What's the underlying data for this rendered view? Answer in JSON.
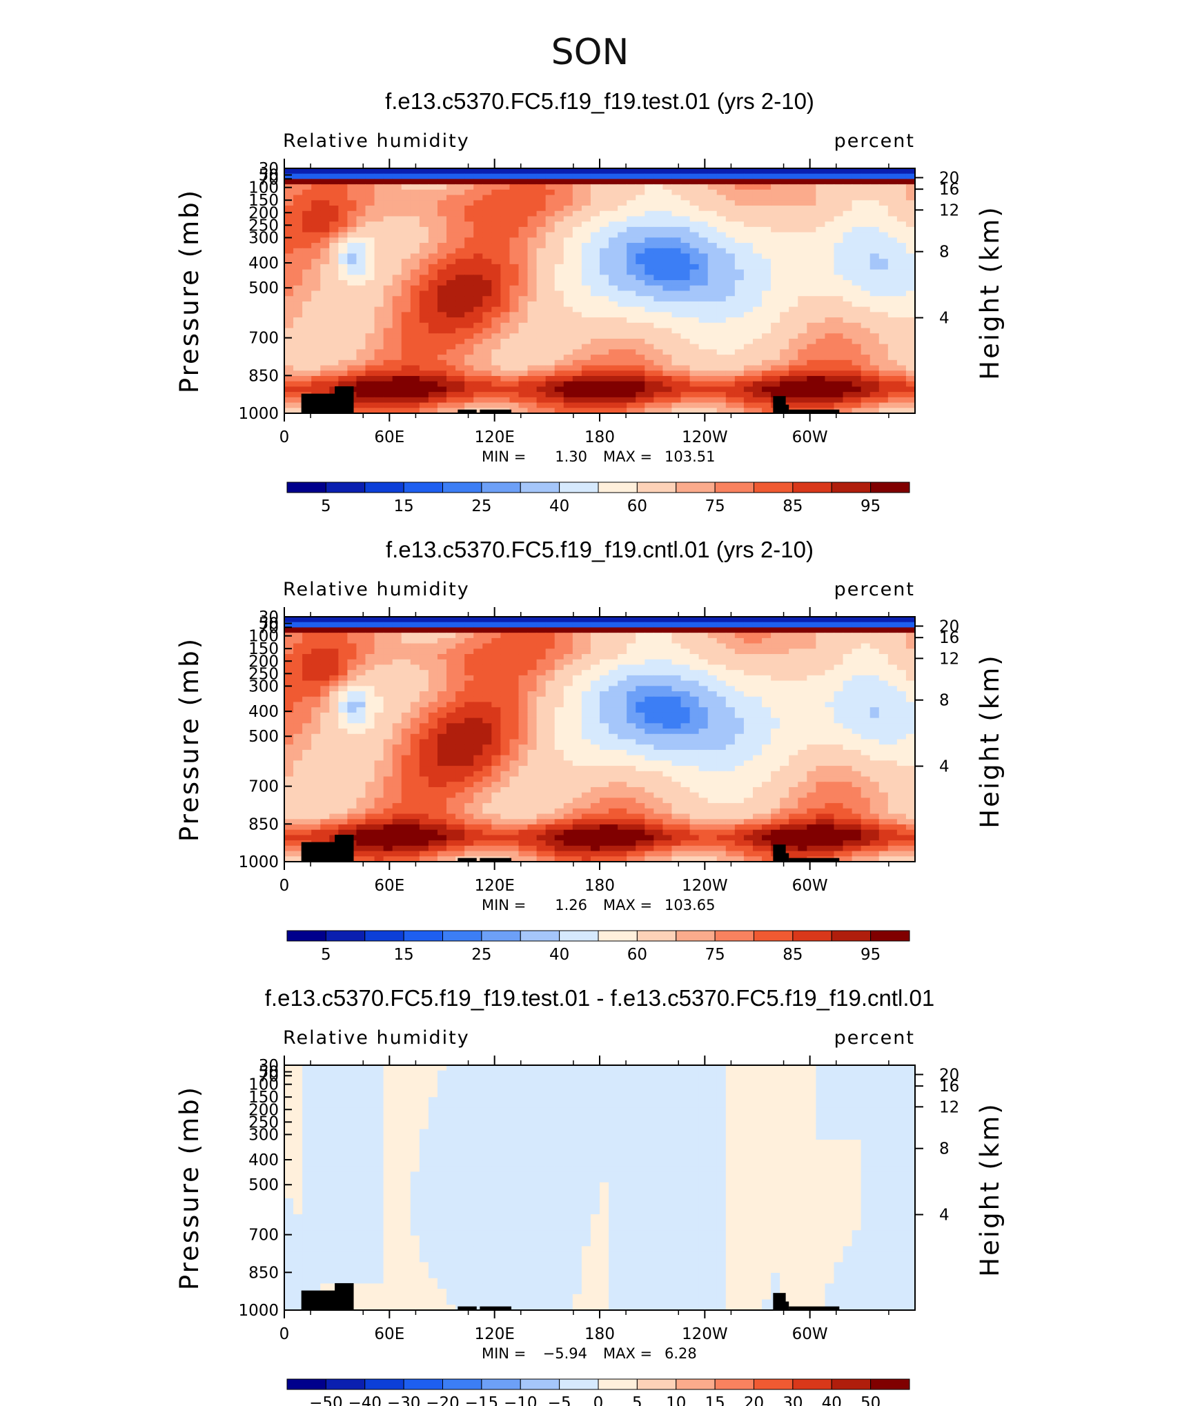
{
  "figure_title": "SON",
  "colors": {
    "abs_scale": [
      "#00008c",
      "#0a1fb0",
      "#0c3fd8",
      "#1e5ff0",
      "#3c7ef5",
      "#6da0f7",
      "#a5c6fa",
      "#d6e9fd",
      "#fff0dc",
      "#fdd2b8",
      "#fbab8c",
      "#f9825f",
      "#f05a32",
      "#d9381a",
      "#b01e0c",
      "#800000"
    ],
    "diff_scale": [
      "#00008c",
      "#0a1fb0",
      "#0c3fd8",
      "#1e5ff0",
      "#3c7ef5",
      "#6da0f7",
      "#a5c6fa",
      "#d6e9fd",
      "#fff0dc",
      "#fdd2b8",
      "#fbab8c",
      "#f9825f",
      "#f05a32",
      "#d9381a",
      "#b01e0c",
      "#800000"
    ]
  },
  "chart_data": [
    {
      "type": "heatmap",
      "title": "f.e13.c5370.FC5.f19_f19.test.01 (yrs 2-10)",
      "left_label": "Relative humidity",
      "right_label": "percent",
      "ylabel": "Pressure (mb)",
      "ylabel_right": "Height (km)",
      "x_ticks": [
        "0",
        "60E",
        "120E",
        "180",
        "120W",
        "60W"
      ],
      "y_ticks": [
        "30",
        "50",
        "70",
        "100",
        "150",
        "200",
        "250",
        "300",
        "400",
        "500",
        "700",
        "850",
        "1000"
      ],
      "y_ticks_right": [
        "20",
        "16",
        "12",
        "8",
        "4"
      ],
      "min_max_text": {
        "min_label": "MIN =",
        "min": "1.30",
        "max_label": "MAX =",
        "max": "103.51"
      },
      "colorbar_labels": [
        "5",
        "15",
        "25",
        "40",
        "60",
        "75",
        "85",
        "95"
      ],
      "mode": "abs"
    },
    {
      "type": "heatmap",
      "title": "f.e13.c5370.FC5.f19_f19.cntl.01 (yrs 2-10)",
      "left_label": "Relative humidity",
      "right_label": "percent",
      "ylabel": "Pressure (mb)",
      "ylabel_right": "Height (km)",
      "x_ticks": [
        "0",
        "60E",
        "120E",
        "180",
        "120W",
        "60W"
      ],
      "y_ticks": [
        "30",
        "50",
        "70",
        "100",
        "150",
        "200",
        "250",
        "300",
        "400",
        "500",
        "700",
        "850",
        "1000"
      ],
      "y_ticks_right": [
        "20",
        "16",
        "12",
        "8",
        "4"
      ],
      "min_max_text": {
        "min_label": "MIN =",
        "min": "1.26",
        "max_label": "MAX =",
        "max": "103.65"
      },
      "colorbar_labels": [
        "5",
        "15",
        "25",
        "40",
        "60",
        "75",
        "85",
        "95"
      ],
      "mode": "abs2"
    },
    {
      "type": "heatmap",
      "title": "f.e13.c5370.FC5.f19_f19.test.01 - f.e13.c5370.FC5.f19_f19.cntl.01",
      "left_label": "Relative humidity",
      "right_label": "percent",
      "ylabel": "Pressure (mb)",
      "ylabel_right": "Height (km)",
      "x_ticks": [
        "0",
        "60E",
        "120E",
        "180",
        "120W",
        "60W"
      ],
      "y_ticks": [
        "30",
        "50",
        "70",
        "100",
        "150",
        "200",
        "250",
        "300",
        "400",
        "500",
        "700",
        "850",
        "1000"
      ],
      "y_ticks_right": [
        "20",
        "16",
        "12",
        "8",
        "4"
      ],
      "min_max_text": {
        "min_label": "MIN =",
        "min": "−5.94",
        "max_label": "MAX =",
        "max": "6.28"
      },
      "colorbar_labels": [
        "−50",
        "−40",
        "−30",
        "−20",
        "−15",
        "−10",
        "−5",
        "0",
        "5",
        "10",
        "15",
        "20",
        "30",
        "40",
        "50"
      ],
      "mode": "diff"
    }
  ]
}
